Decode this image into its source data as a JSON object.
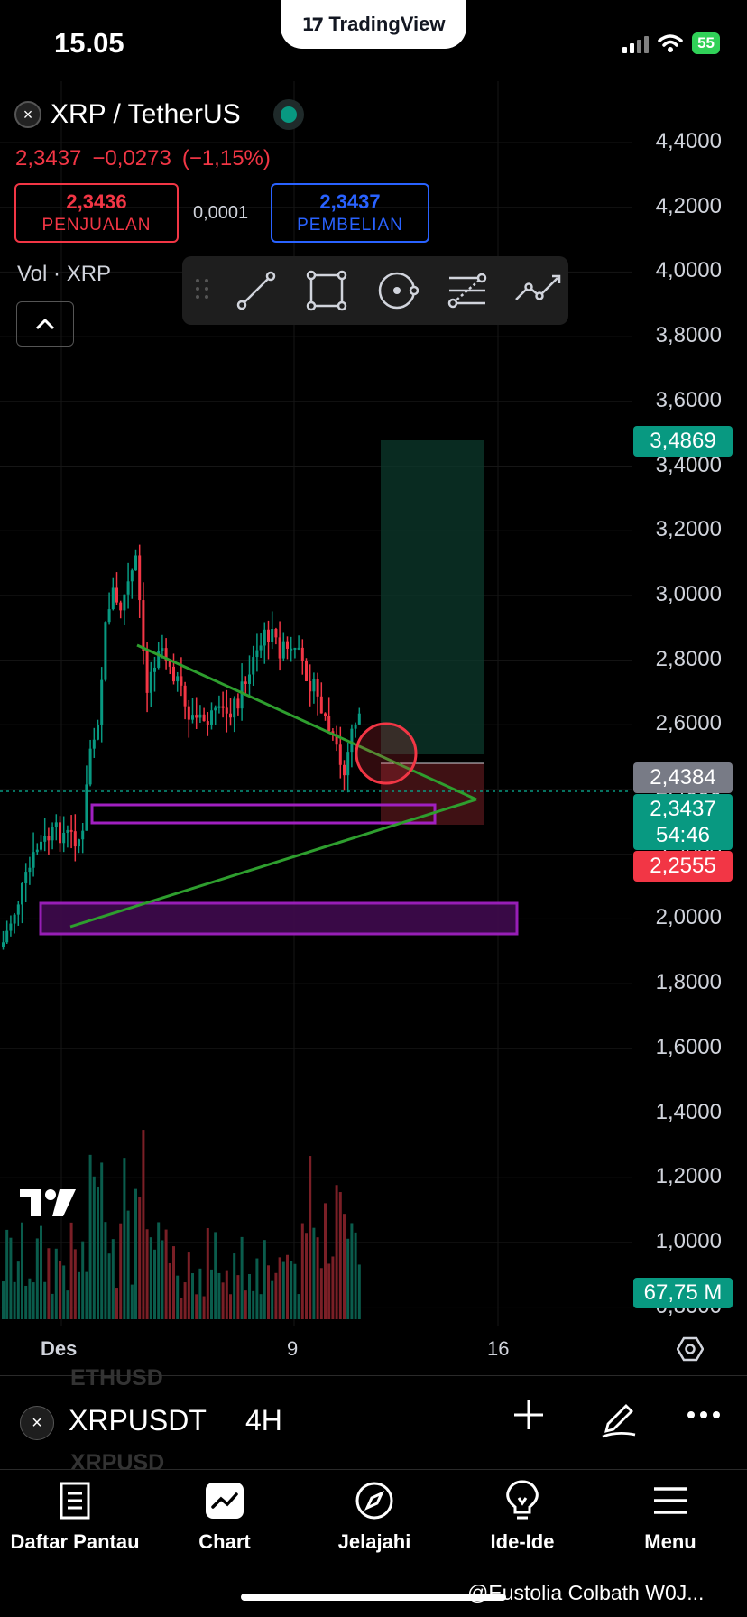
{
  "status": {
    "time": "15.05",
    "battery": "55"
  },
  "brand": {
    "name": "TradingView"
  },
  "header": {
    "symbol_title": "XRP / TetherUS",
    "last": "2,3437",
    "change": "−0,0273",
    "change_pct": "(−1,15%)",
    "sell_price": "2,3436",
    "sell_label": "PENJUALAN",
    "spread": "0,0001",
    "buy_price": "2,3437",
    "buy_label": "PEMBELIAN",
    "volume_label": "Vol · XRP"
  },
  "drawing_tools": [
    "trend-line",
    "rectangle",
    "circle-brush",
    "fib-retracement",
    "path"
  ],
  "price_scale": {
    "ticks": [
      "4,4000",
      "4,2000",
      "4,0000",
      "3,8000",
      "3,6000",
      "3,4000",
      "3,2000",
      "3,0000",
      "2,8000",
      "2,6000",
      "2,4000",
      "2,2000",
      "2,0000",
      "1,8000",
      "1,6000",
      "1,4000",
      "1,2000",
      "1,0000",
      "0,8000"
    ],
    "badge_target": "3,4869",
    "badge_entry": "2,4384",
    "badge_last": "2,3437",
    "badge_countdown": "54:46",
    "badge_stop": "2,2555",
    "badge_volume": "67,75 M"
  },
  "time_axis": [
    "Des",
    "9",
    "16"
  ],
  "symbol_bar": {
    "ghost_above": "ETHUSD",
    "ghost_below": "XRPUSD",
    "symbol": "XRPUSDT",
    "timeframe": "4H"
  },
  "nav": [
    {
      "label": "Daftar Pantau",
      "icon": "watchlist-icon"
    },
    {
      "label": "Chart",
      "icon": "chart-icon"
    },
    {
      "label": "Jelajahi",
      "icon": "compass-icon"
    },
    {
      "label": "Ide-Ide",
      "icon": "lightbulb-icon"
    },
    {
      "label": "Menu",
      "icon": "menu-icon"
    }
  ],
  "watermark": "@Eustolia Colbath W0J...",
  "colors": {
    "up": "#089981",
    "down": "#f23645",
    "buy": "#2962ff",
    "pattern": "#2e9e2e",
    "zone": "#a020c0"
  }
}
